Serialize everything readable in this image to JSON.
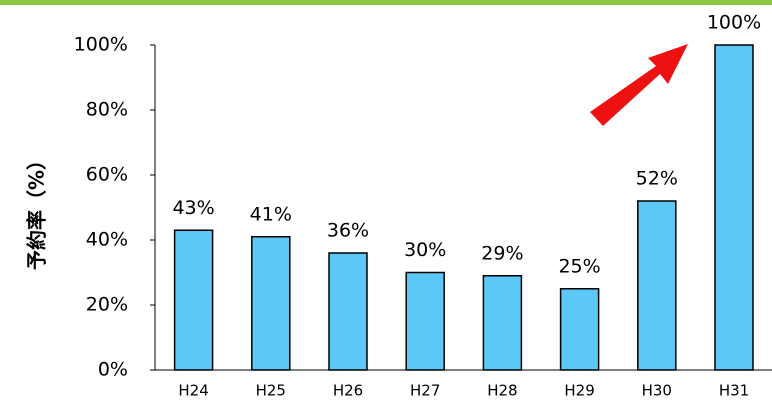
{
  "chart_data": {
    "type": "bar",
    "y_label": "予約率（%）",
    "categories": [
      "H24",
      "H25",
      "H26",
      "H27",
      "H28",
      "H29",
      "H30",
      "H31"
    ],
    "values": [
      43,
      41,
      36,
      30,
      29,
      25,
      52,
      100
    ],
    "value_labels": [
      "43%",
      "41%",
      "36%",
      "30%",
      "29%",
      "25%",
      "52%",
      "100%"
    ],
    "color": "#5bc8f5",
    "ylim": [
      0,
      100
    ],
    "yticks": [
      {
        "value": 0,
        "label": "0%"
      },
      {
        "value": 20,
        "label": "20%"
      },
      {
        "value": 40,
        "label": "40%"
      },
      {
        "value": 60,
        "label": "60%"
      },
      {
        "value": 80,
        "label": "80%"
      },
      {
        "value": 100,
        "label": "100%"
      }
    ]
  }
}
